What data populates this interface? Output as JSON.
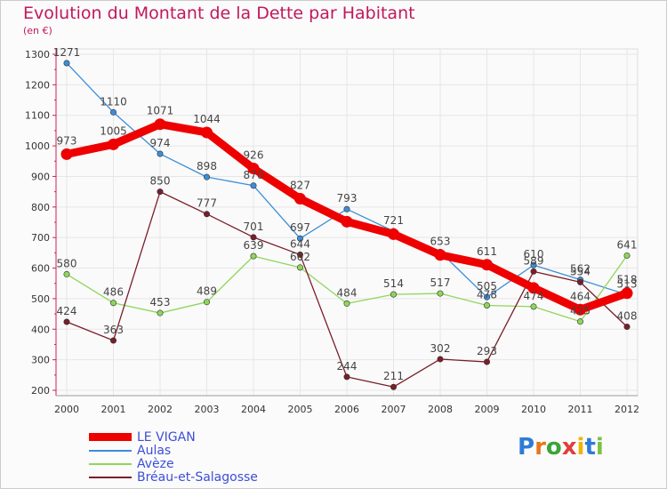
{
  "title": "Evolution du Montant de la Dette par Habitant",
  "subtitle": "(en €)",
  "logo": {
    "text": "Proxiti",
    "letter_colors": [
      "#2e7bd6",
      "#e8761e",
      "#3aa53a",
      "#e23d3d",
      "#f0b400",
      "#2e7bd6",
      "#7bc043"
    ]
  },
  "chart_data": {
    "type": "line",
    "title": "Evolution du Montant de la Dette par Habitant",
    "subtitle": "(en €)",
    "x": [
      "2000",
      "2001",
      "2002",
      "2003",
      "2004",
      "2005",
      "2006",
      "2007",
      "2008",
      "2009",
      "2010",
      "2011",
      "2012"
    ],
    "yticks": [
      "200",
      "300",
      "400",
      "500",
      "600",
      "700",
      "800",
      "900",
      "1000",
      "1100",
      "1200",
      "1300"
    ],
    "ylim": [
      200,
      1300
    ],
    "grid": true,
    "legend_position": "bottom-left",
    "series": [
      {
        "name": "LE VIGAN",
        "color": "#ee0000",
        "values": [
          973,
          1005,
          1071,
          1044,
          926,
          827,
          752,
          711,
          643,
          611,
          535,
          464,
          518
        ],
        "labels": [
          "973",
          "1005",
          "1071",
          "1044",
          "926",
          "827",
          "",
          "",
          "",
          "611",
          "",
          "464",
          "518"
        ]
      },
      {
        "name": "Aulas",
        "color": "#3d8ed6",
        "values": [
          1271,
          1110,
          974,
          898,
          870,
          697,
          793,
          721,
          653,
          505,
          610,
          562,
          513
        ],
        "labels": [
          "1271",
          "1110",
          "974",
          "898",
          "870",
          "697",
          "793",
          "721",
          "653",
          "505",
          "610",
          "562",
          "513"
        ]
      },
      {
        "name": "Avèze",
        "color": "#8fd65a",
        "values": [
          580,
          486,
          453,
          489,
          639,
          602,
          484,
          514,
          517,
          478,
          474,
          425,
          641
        ],
        "labels": [
          "580",
          "486",
          "453",
          "489",
          "639",
          "602",
          "484",
          "514",
          "517",
          "478",
          "474",
          "425",
          "641"
        ]
      },
      {
        "name": "Bréau-et-Salagosse",
        "color": "#7a1e2a",
        "values": [
          424,
          363,
          850,
          777,
          701,
          644,
          244,
          211,
          302,
          293,
          589,
          554,
          408
        ],
        "labels": [
          "424",
          "363",
          "850",
          "777",
          "701",
          "644",
          "244",
          "211",
          "302",
          "293",
          "589",
          "554",
          "408"
        ]
      }
    ]
  }
}
